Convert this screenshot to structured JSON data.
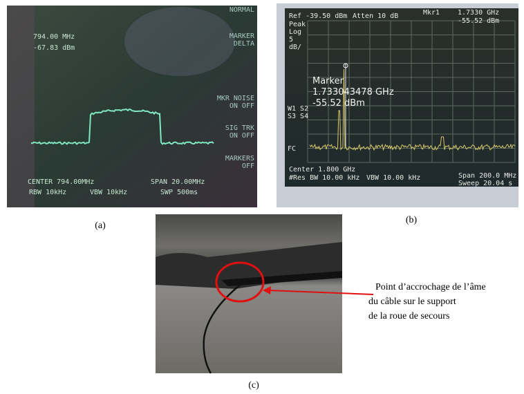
{
  "panel_a": {
    "label": "(a)",
    "marker_freq": "794.00 MHz",
    "marker_level": "-67.83 dBm",
    "softkeys": [
      "NORMAL",
      "MARKER",
      "DELTA",
      "MKR NOISE",
      "ON OFF",
      "SIG TRK",
      "ON OFF",
      "MARKERS",
      "OFF"
    ],
    "center": "CENTER 794.00MHz",
    "span": "SPAN 20.00MHz",
    "rbw": "RBW 10kHz",
    "vbw": "VBW 10kHz",
    "sweep": "SWP 500ms"
  },
  "panel_b": {
    "label": "(b)",
    "ref": "Ref -39.50 dBm",
    "atten": "Atten 10 dB",
    "mkr": "Mkr1",
    "mkr_freq": "1.7330 GHz",
    "mkr_level": "-55.52 dBm",
    "side": [
      "Peak",
      "Log",
      "5",
      "dB/"
    ],
    "trace_flags": [
      "W1 S2",
      "S3 S4",
      "FC"
    ],
    "marker_title": "Marker",
    "marker_freq": "1.733043478 GHz",
    "marker_level": "-55.52 dBm",
    "center": "Center 1.800 GHz",
    "res_bw": "#Res BW 10.00 kHz",
    "vbw": "VBW 10.00 kHz",
    "span": "Span 200.0 MHz",
    "sweep": "Sweep 20.04 s"
  },
  "panel_c": {
    "label": "(c)",
    "annotation": [
      "Point d’accrochage de l’âme",
      "du câble sur le support",
      "de la roue de secours"
    ]
  }
}
